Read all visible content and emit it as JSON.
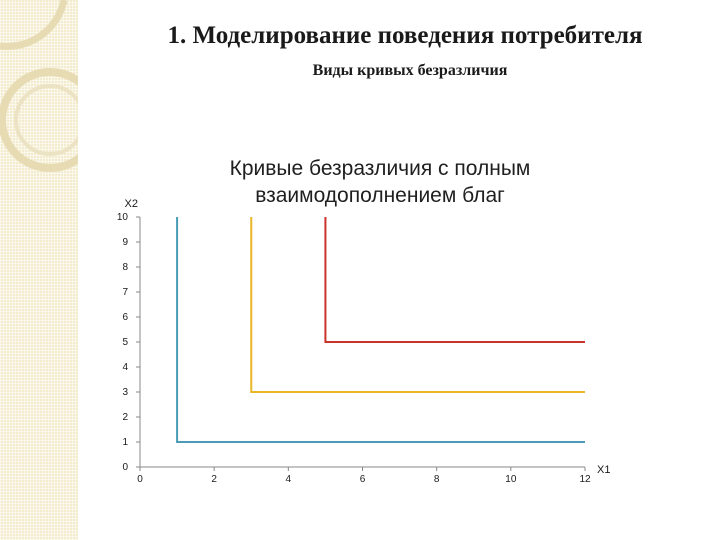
{
  "slide": {
    "title": "1. Моделирование поведения потребителя",
    "subtitle": "Виды кривых безразличия"
  },
  "colors": {
    "panel": "#f3ebcd",
    "accent": "#e6dbb2",
    "axis": "#888888",
    "text": "#1a1a1a"
  },
  "chart_data": {
    "type": "line",
    "title": "Кривые безразличия  с полным взаимодополнением благ",
    "xlabel": "X1",
    "ylabel": "X2",
    "xlim": [
      0,
      12
    ],
    "ylim": [
      0,
      10
    ],
    "xticks": [
      0,
      2,
      4,
      6,
      8,
      10,
      12
    ],
    "yticks": [
      0,
      1,
      2,
      3,
      4,
      5,
      6,
      7,
      8,
      9,
      10
    ],
    "grid": false,
    "series": [
      {
        "color": "#4a9cb6",
        "points": [
          [
            1,
            10
          ],
          [
            1,
            1
          ],
          [
            12,
            1
          ]
        ]
      },
      {
        "color": "#e9b627",
        "points": [
          [
            3,
            10
          ],
          [
            3,
            3
          ],
          [
            12,
            3
          ]
        ]
      },
      {
        "color": "#c9352c",
        "points": [
          [
            5,
            10
          ],
          [
            5,
            5
          ],
          [
            12,
            5
          ]
        ]
      }
    ]
  }
}
